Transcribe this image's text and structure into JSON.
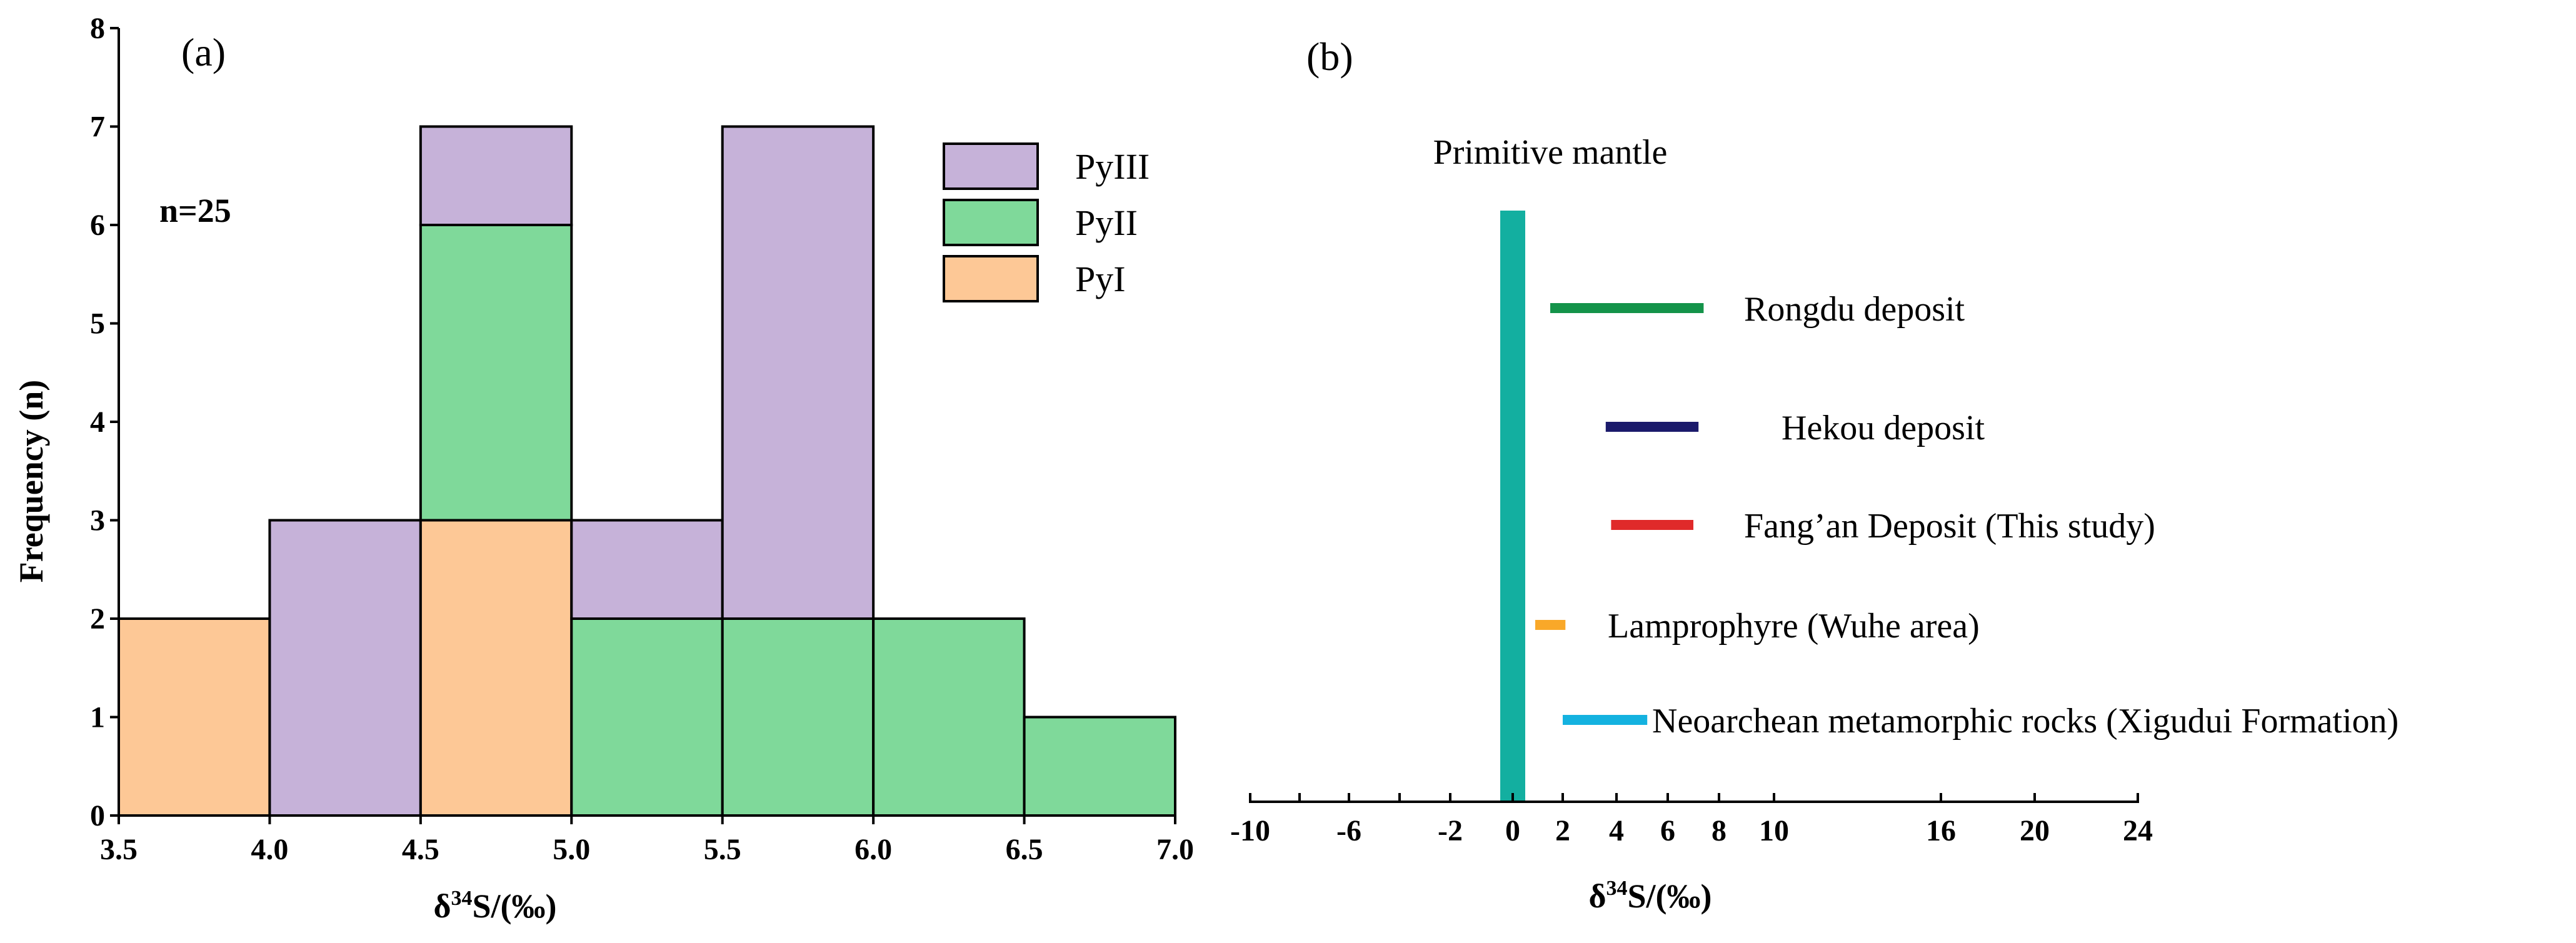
{
  "chart_data": [
    {
      "type": "bar",
      "subtype": "stacked-histogram",
      "panel_label": "(a)",
      "annotation": "n=25",
      "xlabel_prefix": "δ",
      "xlabel_sup": "34",
      "xlabel_suffix": "S/(‰)",
      "ylabel": "Frequency (n)",
      "xlim": [
        3.5,
        7.0
      ],
      "ylim": [
        0,
        8
      ],
      "x_ticks": [
        "3.5",
        "4.0",
        "4.5",
        "5.0",
        "5.5",
        "6.0",
        "6.5",
        "7.0"
      ],
      "y_ticks": [
        "0",
        "1",
        "2",
        "3",
        "4",
        "5",
        "6",
        "7",
        "8"
      ],
      "bin_edges": [
        [
          3.5,
          4.0
        ],
        [
          4.0,
          4.5
        ],
        [
          4.5,
          5.0
        ],
        [
          5.0,
          5.5
        ],
        [
          5.5,
          6.0
        ],
        [
          6.0,
          6.5
        ],
        [
          6.5,
          7.0
        ]
      ],
      "series": [
        {
          "name": "PyI",
          "color": "#FDC896",
          "values": [
            2,
            0,
            3,
            0,
            0,
            0,
            0
          ]
        },
        {
          "name": "PyII",
          "color": "#7FD99A",
          "values": [
            0,
            0,
            3,
            2,
            2,
            2,
            1
          ]
        },
        {
          "name": "PyIII",
          "color": "#C6B2D9",
          "values": [
            0,
            3,
            1,
            1,
            5,
            0,
            0
          ]
        }
      ],
      "legend": [
        "PyIII",
        "PyII",
        "PyI"
      ],
      "legend_position": "top-right"
    },
    {
      "type": "range",
      "panel_label": "(b)",
      "xlabel_prefix": "δ",
      "xlabel_sup": "34",
      "xlabel_suffix": "S/(‰)",
      "x_ticks": [
        "-10",
        "-6",
        "-2",
        "0",
        "2",
        "4",
        "6",
        "8",
        "10",
        "16",
        "20",
        "24"
      ],
      "primitive_mantle": {
        "label": "Primitive mantle",
        "x": 0,
        "color": "#13AFA0"
      },
      "ranges": [
        {
          "name": "Rongdu deposit",
          "min": 1.5,
          "max": 7.4,
          "color": "#14934A"
        },
        {
          "name": "Hekou deposit",
          "min": 3.6,
          "max": 7.2,
          "color": "#1B1A6B"
        },
        {
          "name": "Fang’an  Deposit (This study)",
          "min": 3.8,
          "max": 7.0,
          "color": "#E02A2A"
        },
        {
          "name": "Lamprophyre (Wuhe area)",
          "min": 0.9,
          "max": 2.1,
          "color": "#F9A829"
        },
        {
          "name": "Neoarchean metamorphic rocks (Xigudui Formation)",
          "min": 2.0,
          "max": 5.2,
          "color": "#14B2E0"
        }
      ]
    }
  ]
}
